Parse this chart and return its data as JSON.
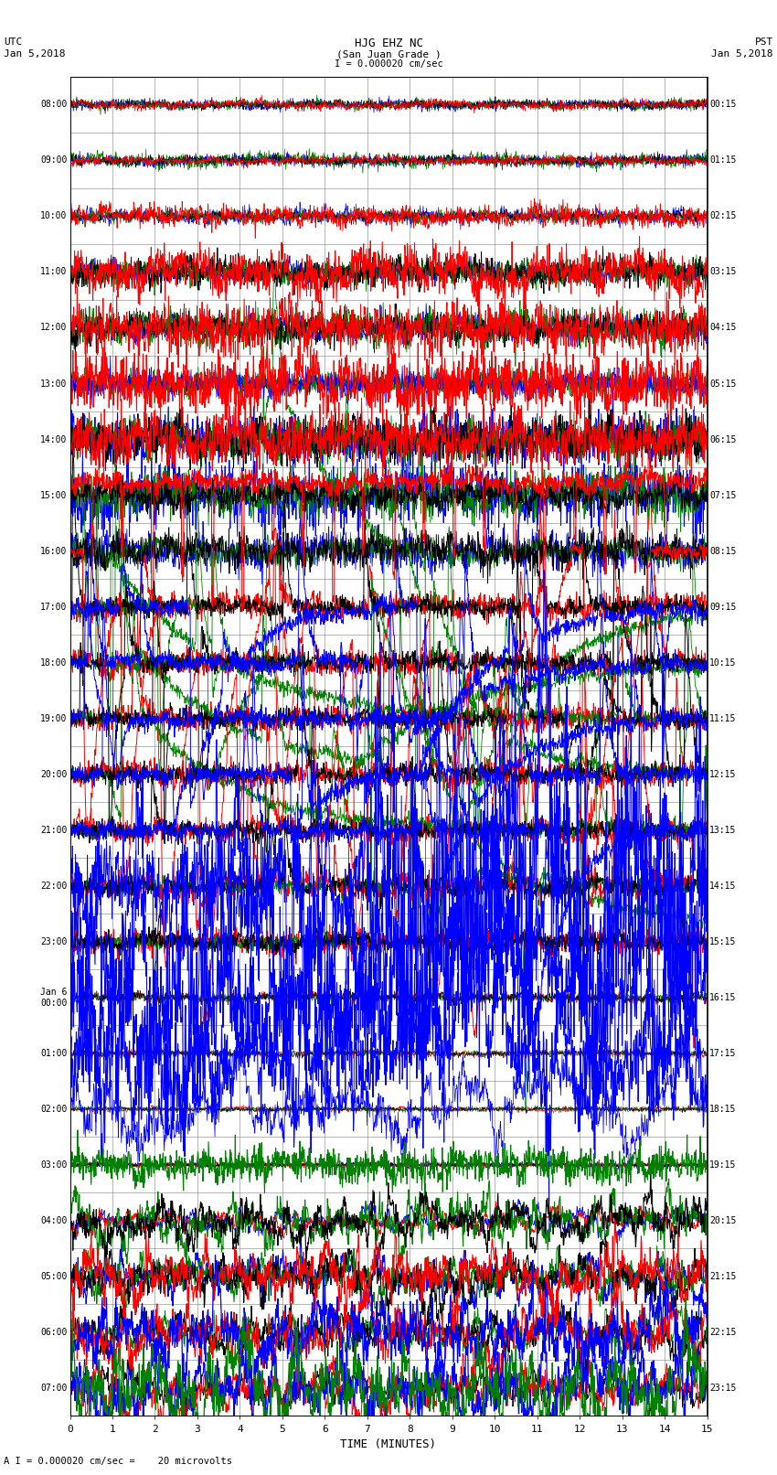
{
  "title_line1": "HJG EHZ NC",
  "title_line2": "(San Juan Grade )",
  "scale_label": "I = 0.000020 cm/sec",
  "utc_label": "UTC",
  "utc_date": "Jan 5,2018",
  "pst_label": "PST",
  "pst_date": "Jan 5,2018",
  "bottom_label": "A I = 0.000020 cm/sec =    20 microvolts",
  "xlabel": "TIME (MINUTES)",
  "left_times": [
    "08:00",
    "09:00",
    "10:00",
    "11:00",
    "12:00",
    "13:00",
    "14:00",
    "15:00",
    "16:00",
    "17:00",
    "18:00",
    "19:00",
    "20:00",
    "21:00",
    "22:00",
    "23:00",
    "Jan 6\n00:00",
    "01:00",
    "02:00",
    "03:00",
    "04:00",
    "05:00",
    "06:00",
    "07:00"
  ],
  "right_times": [
    "00:15",
    "01:15",
    "02:15",
    "03:15",
    "04:15",
    "05:15",
    "06:15",
    "07:15",
    "08:15",
    "09:15",
    "10:15",
    "11:15",
    "12:15",
    "13:15",
    "14:15",
    "15:15",
    "16:15",
    "17:15",
    "18:15",
    "19:15",
    "20:15",
    "21:15",
    "22:15",
    "23:15"
  ],
  "n_rows": 24,
  "minutes_per_row": 15,
  "bg_color": "#ffffff",
  "grid_color": "#808080",
  "figsize": [
    8.5,
    16.13
  ],
  "dpi": 100
}
